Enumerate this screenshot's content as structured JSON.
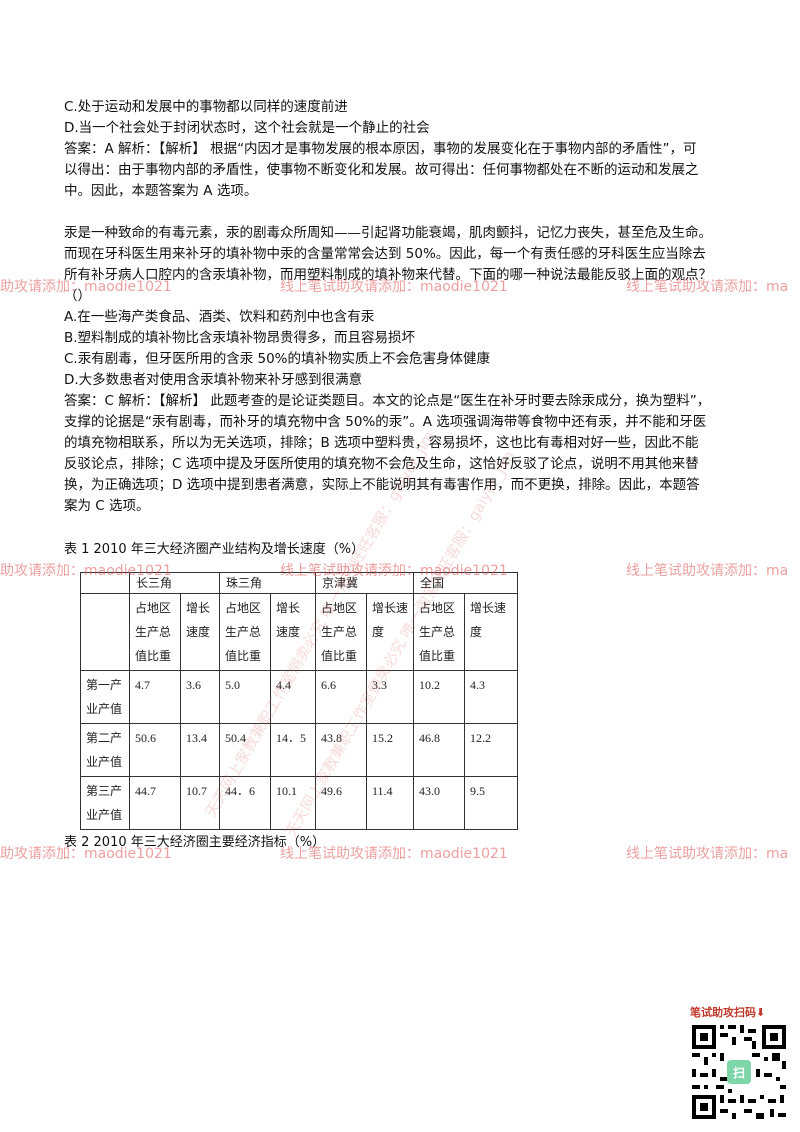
{
  "block1": {
    "option_c": "C.处于运动和发展中的事物都以同样的速度前进",
    "option_d": "D.当一个社会处于封闭状态时，这个社会就是一个静止的社会",
    "answer_lines": [
      "答案：A 解析：【解析】 根据“内因才是事物发展的根本原因，事物的发展变化在于事物内部的矛盾性”，可",
      "以得出：由于事物内部的矛盾性，使事物不断变化和发展。故可得出：任何事物都处在不断的运动和发展之",
      "中。因此，本题答案为 A 选项。"
    ]
  },
  "block2": {
    "question_lines": [
      "汞是一种致命的有毒元素，汞的剧毒众所周知——引起肾功能衰竭，肌肉颤抖，记忆力丧失，甚至危及生命。",
      "而现在牙科医生用来补牙的填补物中汞的含量常常会达到 50%。因此，每一个有责任感的牙科医生应当除去",
      "所有补牙病人口腔内的含汞填补物，而用塑料制成的填补物来代替。下面的哪一种说法最能反驳上面的观点？",
      "（）"
    ],
    "options": [
      "A.在一些海产类食品、酒类、饮料和药剂中也含有汞",
      "B.塑料制成的填补物比含汞填补物昂贵得多，而且容易损坏",
      "C.汞有剧毒，但牙医所用的含汞 50%的填补物实质上不会危害身体健康",
      "D.大多数患者对使用含汞填补物来补牙感到很满意"
    ],
    "answer_lines": [
      "答案：C 解析：【解析】 此题考查的是论证类题目。本文的论点是“医生在补牙时要去除汞成分，换为塑料”，",
      "支撑的论据是“汞有剧毒，而补牙的填充物中含 50%的汞”。A 选项强调海带等食物中还有汞，并不能和牙医",
      "的填充物相联系，所以为无关选项，排除；B 选项中塑料贵，容易损坏，这也比有毒相对好一些，因此不能",
      "反驳论点，排除；C 选项中提及牙医所使用的填充物不会危及生命，这恰好反驳了论点，说明不用其他来替",
      "换，为正确选项；D 选项中提到患者满意，实际上不能说明其有毒害作用，而不更换，排除。因此，本题答",
      "案为 C 选项。"
    ]
  },
  "table1": {
    "caption": "表 1 2010 年三大经济圈产业结构及增长速度（%）",
    "groups": [
      "长三角",
      "珠三角",
      "京津冀",
      "全国"
    ],
    "subheaders": [
      [
        "占地区",
        "生产总",
        "值比重"
      ],
      [
        "增长",
        "速度"
      ],
      [
        "占地区",
        "生产总",
        "值比重"
      ],
      [
        "增长",
        "速度"
      ],
      [
        "占地区",
        "生产总",
        "值比重"
      ],
      [
        "增长速",
        "度"
      ],
      [
        "占地区",
        "生产总",
        "值比重"
      ],
      [
        "增长速",
        "度"
      ]
    ],
    "rows": [
      {
        "label": [
          "第一产",
          "业产值"
        ],
        "values": [
          "4.7",
          "3.6",
          "5.0",
          "4.4",
          "6.6",
          "3.3",
          "10.2",
          "4.3"
        ]
      },
      {
        "label": [
          "第二产",
          "业产值"
        ],
        "values": [
          "50.6",
          "13.4",
          "50.4",
          "14．5",
          "43.8",
          "15.2",
          "46.8",
          "12.2"
        ]
      },
      {
        "label": [
          "第三产",
          "业产值"
        ],
        "values": [
          "44.7",
          "10.7",
          "44．6",
          "10.1",
          "49.6",
          "11.4",
          "43.0",
          "9.5"
        ]
      }
    ]
  },
  "table2": {
    "caption": "表 2 2010 年三大经济圈主要经济指标（%）"
  },
  "watermark": {
    "left": "助攻请添加：maodie1021",
    "mid": "线上笔试助攻请添加：maodie1021",
    "right": "线上笔试助攻请添加：ma",
    "diag1": "天天网上家教兼职工作室倒卖必究 唯一淘宝旺旺客服：gaiyer_jim",
    "diag2": "天天网上家教兼职工作室倒卖必究 唯一淘宝旺旺客服：gaiyer_jim"
  },
  "qr": {
    "title": "笔试助攻扫码⬇",
    "center_text": "扫"
  }
}
